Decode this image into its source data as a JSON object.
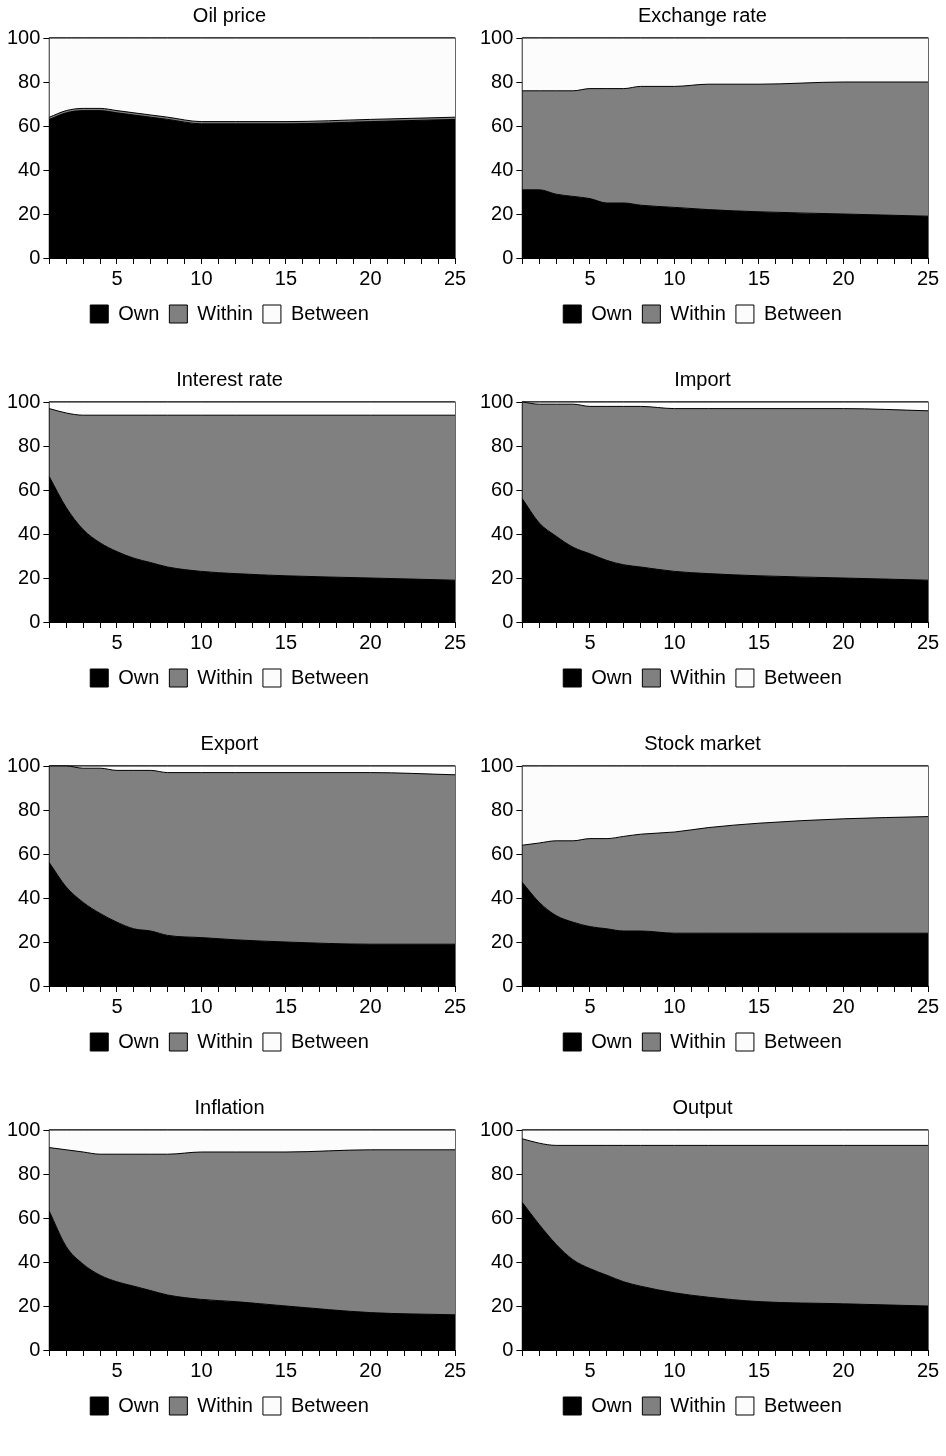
{
  "chart_data": [
    {
      "type": "area",
      "stacked": true,
      "title": "Oil price",
      "x": [
        1,
        2,
        3,
        4,
        5,
        6,
        7,
        8,
        10,
        12,
        15,
        20,
        25
      ],
      "xlim": [
        1,
        25
      ],
      "xticks": [
        {
          "value": 1,
          "label": null
        },
        {
          "value": 2,
          "label": null
        },
        {
          "value": 3,
          "label": null
        },
        {
          "value": 4,
          "label": null
        },
        5,
        {
          "value": 6,
          "label": null
        },
        {
          "value": 7,
          "label": null
        },
        {
          "value": 8,
          "label": null
        },
        {
          "value": 9,
          "label": null
        },
        10,
        {
          "value": 11,
          "label": null
        },
        {
          "value": 12,
          "label": null
        },
        {
          "value": 13,
          "label": null
        },
        {
          "value": 14,
          "label": null
        },
        15,
        {
          "value": 16,
          "label": null
        },
        {
          "value": 17,
          "label": null
        },
        {
          "value": 18,
          "label": null
        },
        {
          "value": 19,
          "label": null
        },
        20,
        {
          "value": 21,
          "label": null
        },
        {
          "value": 22,
          "label": null
        },
        {
          "value": 23,
          "label": null
        },
        {
          "value": 24,
          "label": null
        },
        25
      ],
      "ylim": [
        0,
        100
      ],
      "yticks": [
        0,
        20,
        40,
        60,
        80,
        100
      ],
      "legend": "bottom",
      "series": [
        {
          "name": "Own",
          "color": "#000000",
          "values": [
            63,
            66,
            67,
            67,
            66,
            65,
            64,
            63,
            61,
            61,
            61,
            62,
            63
          ]
        },
        {
          "name": "Within",
          "color": "#808080",
          "values": [
            1,
            1,
            1,
            1,
            1,
            1,
            1,
            1,
            1,
            1,
            1,
            1,
            1
          ]
        },
        {
          "name": "Between",
          "color": "#fcfcfc",
          "values": [
            36,
            33,
            32,
            32,
            33,
            34,
            35,
            36,
            38,
            38,
            38,
            37,
            36
          ]
        }
      ]
    },
    {
      "type": "area",
      "stacked": true,
      "title": "Exchange rate",
      "x": [
        1,
        2,
        3,
        4,
        5,
        6,
        7,
        8,
        10,
        12,
        15,
        20,
        25
      ],
      "xlim": [
        1,
        25
      ],
      "xticks": [
        {
          "value": 1,
          "label": null
        },
        {
          "value": 2,
          "label": null
        },
        {
          "value": 3,
          "label": null
        },
        {
          "value": 4,
          "label": null
        },
        5,
        {
          "value": 6,
          "label": null
        },
        {
          "value": 7,
          "label": null
        },
        {
          "value": 8,
          "label": null
        },
        {
          "value": 9,
          "label": null
        },
        10,
        {
          "value": 11,
          "label": null
        },
        {
          "value": 12,
          "label": null
        },
        {
          "value": 13,
          "label": null
        },
        {
          "value": 14,
          "label": null
        },
        15,
        {
          "value": 16,
          "label": null
        },
        {
          "value": 17,
          "label": null
        },
        {
          "value": 18,
          "label": null
        },
        {
          "value": 19,
          "label": null
        },
        20,
        {
          "value": 21,
          "label": null
        },
        {
          "value": 22,
          "label": null
        },
        {
          "value": 23,
          "label": null
        },
        {
          "value": 24,
          "label": null
        },
        25
      ],
      "ylim": [
        0,
        100
      ],
      "yticks": [
        0,
        20,
        40,
        60,
        80,
        100
      ],
      "legend": "bottom",
      "series": [
        {
          "name": "Own",
          "color": "#000000",
          "values": [
            31,
            31,
            29,
            28,
            27,
            25,
            25,
            24,
            23,
            22,
            21,
            20,
            19
          ]
        },
        {
          "name": "Within",
          "color": "#808080",
          "values": [
            45,
            45,
            47,
            48,
            50,
            52,
            52,
            54,
            55,
            57,
            58,
            60,
            61
          ]
        },
        {
          "name": "Between",
          "color": "#fcfcfc",
          "values": [
            24,
            24,
            24,
            24,
            23,
            23,
            23,
            22,
            22,
            21,
            21,
            20,
            20
          ]
        }
      ]
    },
    {
      "type": "area",
      "stacked": true,
      "title": "Interest rate",
      "x": [
        1,
        2,
        3,
        4,
        5,
        6,
        7,
        8,
        10,
        12,
        15,
        20,
        25
      ],
      "xlim": [
        1,
        25
      ],
      "xticks": [
        {
          "value": 1,
          "label": null
        },
        {
          "value": 2,
          "label": null
        },
        {
          "value": 3,
          "label": null
        },
        {
          "value": 4,
          "label": null
        },
        5,
        {
          "value": 6,
          "label": null
        },
        {
          "value": 7,
          "label": null
        },
        {
          "value": 8,
          "label": null
        },
        {
          "value": 9,
          "label": null
        },
        10,
        {
          "value": 11,
          "label": null
        },
        {
          "value": 12,
          "label": null
        },
        {
          "value": 13,
          "label": null
        },
        {
          "value": 14,
          "label": null
        },
        15,
        {
          "value": 16,
          "label": null
        },
        {
          "value": 17,
          "label": null
        },
        {
          "value": 18,
          "label": null
        },
        {
          "value": 19,
          "label": null
        },
        20,
        {
          "value": 21,
          "label": null
        },
        {
          "value": 22,
          "label": null
        },
        {
          "value": 23,
          "label": null
        },
        {
          "value": 24,
          "label": null
        },
        25
      ],
      "ylim": [
        0,
        100
      ],
      "yticks": [
        0,
        20,
        40,
        60,
        80,
        100
      ],
      "legend": "bottom",
      "series": [
        {
          "name": "Own",
          "color": "#000000",
          "values": [
            66,
            52,
            42,
            36,
            32,
            29,
            27,
            25,
            23,
            22,
            21,
            20,
            19
          ]
        },
        {
          "name": "Within",
          "color": "#808080",
          "values": [
            31,
            43,
            52,
            58,
            62,
            65,
            67,
            69,
            71,
            72,
            73,
            74,
            75
          ]
        },
        {
          "name": "Between",
          "color": "#fcfcfc",
          "values": [
            3,
            5,
            6,
            6,
            6,
            6,
            6,
            6,
            6,
            6,
            6,
            6,
            6
          ]
        }
      ]
    },
    {
      "type": "area",
      "stacked": true,
      "title": "Import",
      "x": [
        1,
        2,
        3,
        4,
        5,
        6,
        7,
        8,
        10,
        12,
        15,
        20,
        25
      ],
      "xlim": [
        1,
        25
      ],
      "xticks": [
        {
          "value": 1,
          "label": null
        },
        {
          "value": 2,
          "label": null
        },
        {
          "value": 3,
          "label": null
        },
        {
          "value": 4,
          "label": null
        },
        5,
        {
          "value": 6,
          "label": null
        },
        {
          "value": 7,
          "label": null
        },
        {
          "value": 8,
          "label": null
        },
        {
          "value": 9,
          "label": null
        },
        10,
        {
          "value": 11,
          "label": null
        },
        {
          "value": 12,
          "label": null
        },
        {
          "value": 13,
          "label": null
        },
        {
          "value": 14,
          "label": null
        },
        15,
        {
          "value": 16,
          "label": null
        },
        {
          "value": 17,
          "label": null
        },
        {
          "value": 18,
          "label": null
        },
        {
          "value": 19,
          "label": null
        },
        20,
        {
          "value": 21,
          "label": null
        },
        {
          "value": 22,
          "label": null
        },
        {
          "value": 23,
          "label": null
        },
        {
          "value": 24,
          "label": null
        },
        25
      ],
      "ylim": [
        0,
        100
      ],
      "yticks": [
        0,
        20,
        40,
        60,
        80,
        100
      ],
      "legend": "bottom",
      "series": [
        {
          "name": "Own",
          "color": "#000000",
          "values": [
            56,
            45,
            39,
            34,
            31,
            28,
            26,
            25,
            23,
            22,
            21,
            20,
            19
          ]
        },
        {
          "name": "Within",
          "color": "#808080",
          "values": [
            44,
            54,
            60,
            65,
            67,
            70,
            72,
            73,
            74,
            75,
            76,
            77,
            77
          ]
        },
        {
          "name": "Between",
          "color": "#fcfcfc",
          "values": [
            0,
            1,
            1,
            1,
            2,
            2,
            2,
            2,
            3,
            3,
            3,
            3,
            4
          ]
        }
      ]
    },
    {
      "type": "area",
      "stacked": true,
      "title": "Export",
      "x": [
        1,
        2,
        3,
        4,
        5,
        6,
        7,
        8,
        10,
        12,
        15,
        20,
        25
      ],
      "xlim": [
        1,
        25
      ],
      "xticks": [
        {
          "value": 1,
          "label": null
        },
        {
          "value": 2,
          "label": null
        },
        {
          "value": 3,
          "label": null
        },
        {
          "value": 4,
          "label": null
        },
        5,
        {
          "value": 6,
          "label": null
        },
        {
          "value": 7,
          "label": null
        },
        {
          "value": 8,
          "label": null
        },
        {
          "value": 9,
          "label": null
        },
        10,
        {
          "value": 11,
          "label": null
        },
        {
          "value": 12,
          "label": null
        },
        {
          "value": 13,
          "label": null
        },
        {
          "value": 14,
          "label": null
        },
        15,
        {
          "value": 16,
          "label": null
        },
        {
          "value": 17,
          "label": null
        },
        {
          "value": 18,
          "label": null
        },
        {
          "value": 19,
          "label": null
        },
        20,
        {
          "value": 21,
          "label": null
        },
        {
          "value": 22,
          "label": null
        },
        {
          "value": 23,
          "label": null
        },
        {
          "value": 24,
          "label": null
        },
        25
      ],
      "ylim": [
        0,
        100
      ],
      "yticks": [
        0,
        20,
        40,
        60,
        80,
        100
      ],
      "legend": "bottom",
      "series": [
        {
          "name": "Own",
          "color": "#000000",
          "values": [
            56,
            45,
            38,
            33,
            29,
            26,
            25,
            23,
            22,
            21,
            20,
            19,
            19
          ]
        },
        {
          "name": "Within",
          "color": "#808080",
          "values": [
            44,
            55,
            61,
            66,
            69,
            72,
            73,
            74,
            75,
            76,
            77,
            78,
            77
          ]
        },
        {
          "name": "Between",
          "color": "#fcfcfc",
          "values": [
            0,
            0,
            1,
            1,
            2,
            2,
            2,
            3,
            3,
            3,
            3,
            3,
            4
          ]
        }
      ]
    },
    {
      "type": "area",
      "stacked": true,
      "title": "Stock market",
      "x": [
        1,
        2,
        3,
        4,
        5,
        6,
        7,
        8,
        10,
        12,
        15,
        20,
        25
      ],
      "xlim": [
        1,
        25
      ],
      "xticks": [
        {
          "value": 1,
          "label": null
        },
        {
          "value": 2,
          "label": null
        },
        {
          "value": 3,
          "label": null
        },
        {
          "value": 4,
          "label": null
        },
        5,
        {
          "value": 6,
          "label": null
        },
        {
          "value": 7,
          "label": null
        },
        {
          "value": 8,
          "label": null
        },
        {
          "value": 9,
          "label": null
        },
        10,
        {
          "value": 11,
          "label": null
        },
        {
          "value": 12,
          "label": null
        },
        {
          "value": 13,
          "label": null
        },
        {
          "value": 14,
          "label": null
        },
        15,
        {
          "value": 16,
          "label": null
        },
        {
          "value": 17,
          "label": null
        },
        {
          "value": 18,
          "label": null
        },
        {
          "value": 19,
          "label": null
        },
        20,
        {
          "value": 21,
          "label": null
        },
        {
          "value": 22,
          "label": null
        },
        {
          "value": 23,
          "label": null
        },
        {
          "value": 24,
          "label": null
        },
        25
      ],
      "ylim": [
        0,
        100
      ],
      "yticks": [
        0,
        20,
        40,
        60,
        80,
        100
      ],
      "legend": "bottom",
      "series": [
        {
          "name": "Own",
          "color": "#000000",
          "values": [
            47,
            38,
            32,
            29,
            27,
            26,
            25,
            25,
            24,
            24,
            24,
            24,
            24
          ]
        },
        {
          "name": "Within",
          "color": "#808080",
          "values": [
            17,
            27,
            34,
            37,
            40,
            41,
            43,
            44,
            46,
            48,
            50,
            52,
            53
          ]
        },
        {
          "name": "Between",
          "color": "#fcfcfc",
          "values": [
            36,
            35,
            34,
            34,
            33,
            33,
            32,
            31,
            30,
            28,
            26,
            24,
            23
          ]
        }
      ]
    },
    {
      "type": "area",
      "stacked": true,
      "title": "Inflation",
      "x": [
        1,
        2,
        3,
        4,
        5,
        6,
        7,
        8,
        10,
        12,
        15,
        20,
        25
      ],
      "xlim": [
        1,
        25
      ],
      "xticks": [
        {
          "value": 1,
          "label": null
        },
        {
          "value": 2,
          "label": null
        },
        {
          "value": 3,
          "label": null
        },
        {
          "value": 4,
          "label": null
        },
        5,
        {
          "value": 6,
          "label": null
        },
        {
          "value": 7,
          "label": null
        },
        {
          "value": 8,
          "label": null
        },
        {
          "value": 9,
          "label": null
        },
        10,
        {
          "value": 11,
          "label": null
        },
        {
          "value": 12,
          "label": null
        },
        {
          "value": 13,
          "label": null
        },
        {
          "value": 14,
          "label": null
        },
        15,
        {
          "value": 16,
          "label": null
        },
        {
          "value": 17,
          "label": null
        },
        {
          "value": 18,
          "label": null
        },
        {
          "value": 19,
          "label": null
        },
        20,
        {
          "value": 21,
          "label": null
        },
        {
          "value": 22,
          "label": null
        },
        {
          "value": 23,
          "label": null
        },
        {
          "value": 24,
          "label": null
        },
        25
      ],
      "ylim": [
        0,
        100
      ],
      "yticks": [
        0,
        20,
        40,
        60,
        80,
        100
      ],
      "legend": "bottom",
      "series": [
        {
          "name": "Own",
          "color": "#000000",
          "values": [
            63,
            47,
            39,
            34,
            31,
            29,
            27,
            25,
            23,
            22,
            20,
            17,
            16
          ]
        },
        {
          "name": "Within",
          "color": "#808080",
          "values": [
            29,
            44,
            51,
            55,
            58,
            60,
            62,
            64,
            67,
            68,
            70,
            74,
            75
          ]
        },
        {
          "name": "Between",
          "color": "#fcfcfc",
          "values": [
            8,
            9,
            10,
            11,
            11,
            11,
            11,
            11,
            10,
            10,
            10,
            9,
            9
          ]
        }
      ]
    },
    {
      "type": "area",
      "stacked": true,
      "title": "Output",
      "x": [
        1,
        2,
        3,
        4,
        5,
        6,
        7,
        8,
        10,
        12,
        15,
        20,
        25
      ],
      "xlim": [
        1,
        25
      ],
      "xticks": [
        {
          "value": 1,
          "label": null
        },
        {
          "value": 2,
          "label": null
        },
        {
          "value": 3,
          "label": null
        },
        {
          "value": 4,
          "label": null
        },
        5,
        {
          "value": 6,
          "label": null
        },
        {
          "value": 7,
          "label": null
        },
        {
          "value": 8,
          "label": null
        },
        {
          "value": 9,
          "label": null
        },
        10,
        {
          "value": 11,
          "label": null
        },
        {
          "value": 12,
          "label": null
        },
        {
          "value": 13,
          "label": null
        },
        {
          "value": 14,
          "label": null
        },
        15,
        {
          "value": 16,
          "label": null
        },
        {
          "value": 17,
          "label": null
        },
        {
          "value": 18,
          "label": null
        },
        {
          "value": 19,
          "label": null
        },
        20,
        {
          "value": 21,
          "label": null
        },
        {
          "value": 22,
          "label": null
        },
        {
          "value": 23,
          "label": null
        },
        {
          "value": 24,
          "label": null
        },
        25
      ],
      "ylim": [
        0,
        100
      ],
      "yticks": [
        0,
        20,
        40,
        60,
        80,
        100
      ],
      "legend": "bottom",
      "series": [
        {
          "name": "Own",
          "color": "#000000",
          "values": [
            67,
            57,
            48,
            41,
            37,
            34,
            31,
            29,
            26,
            24,
            22,
            21,
            20
          ]
        },
        {
          "name": "Within",
          "color": "#808080",
          "values": [
            29,
            37,
            45,
            52,
            56,
            59,
            62,
            64,
            67,
            69,
            71,
            72,
            73
          ]
        },
        {
          "name": "Between",
          "color": "#fcfcfc",
          "values": [
            4,
            6,
            7,
            7,
            7,
            7,
            7,
            7,
            7,
            7,
            7,
            7,
            7
          ]
        }
      ]
    }
  ]
}
